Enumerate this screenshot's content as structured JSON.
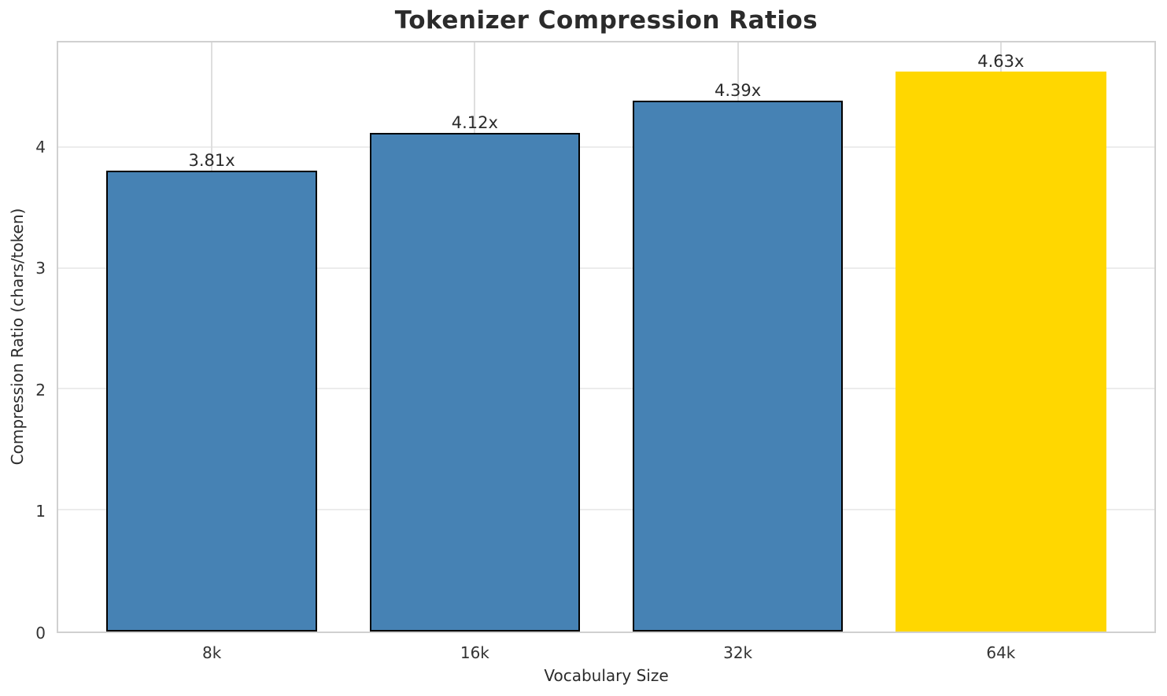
{
  "chart_data": {
    "type": "bar",
    "title": "Tokenizer Compression Ratios",
    "xlabel": "Vocabulary Size",
    "ylabel": "Compression Ratio (chars/token)",
    "categories": [
      "8k",
      "16k",
      "32k",
      "64k"
    ],
    "values": [
      3.81,
      4.12,
      4.39,
      4.63
    ],
    "bar_labels": [
      "3.81x",
      "4.12x",
      "4.39x",
      "4.63x"
    ],
    "yticks": [
      0,
      1,
      2,
      3,
      4
    ],
    "ylim": [
      0,
      4.87
    ],
    "bar_colors": [
      "#4682b4",
      "#4682b4",
      "#4682b4",
      "#ffd700"
    ],
    "bar_edge_colors": [
      "#000000",
      "#000000",
      "#000000",
      "#ffd700"
    ],
    "default_bar_color": "#4682b4",
    "highlight_bar_color": "#ffd700",
    "grid": "both",
    "legend": "none",
    "background": "#ffffff"
  }
}
